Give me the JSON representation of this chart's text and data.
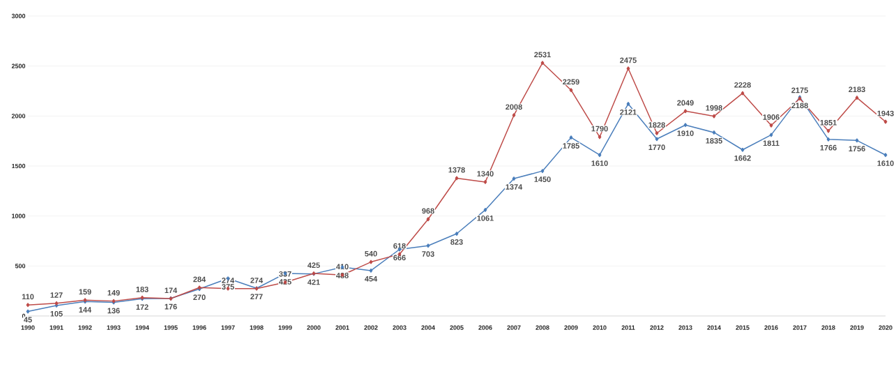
{
  "chart_data": {
    "type": "line",
    "categories": [
      "1990",
      "1991",
      "1992",
      "1993",
      "1994",
      "1995",
      "1996",
      "1997",
      "1998",
      "1999",
      "2000",
      "2001",
      "2002",
      "2003",
      "2004",
      "2005",
      "2006",
      "2007",
      "2008",
      "2009",
      "2010",
      "2011",
      "2012",
      "2013",
      "2014",
      "2015",
      "2016",
      "2017",
      "2018",
      "2019",
      "2020"
    ],
    "series": [
      {
        "color": "#4a7ebb",
        "values": [
          45,
          105,
          144,
          136,
          172,
          176,
          270,
          375,
          277,
          425,
          421,
          488,
          454,
          666,
          703,
          823,
          1061,
          1374,
          1450,
          1785,
          1610,
          2121,
          1770,
          1910,
          1835,
          1662,
          1811,
          2188,
          1766,
          1756,
          1610
        ]
      },
      {
        "color": "#be4b48",
        "values": [
          110,
          127,
          159,
          149,
          183,
          174,
          284,
          274,
          274,
          337,
          425,
          410,
          540,
          618,
          968,
          1378,
          1340,
          2008,
          2531,
          2259,
          1790,
          2475,
          1828,
          2049,
          1998,
          2228,
          1906,
          2175,
          1851,
          2183,
          1943
        ]
      }
    ],
    "ylim": [
      0,
      3000
    ],
    "yticks": [
      0,
      500,
      1000,
      1500,
      2000,
      2500,
      3000
    ],
    "grid": "y",
    "marker": "diamond",
    "line_style": "solid",
    "data_labels": true
  }
}
